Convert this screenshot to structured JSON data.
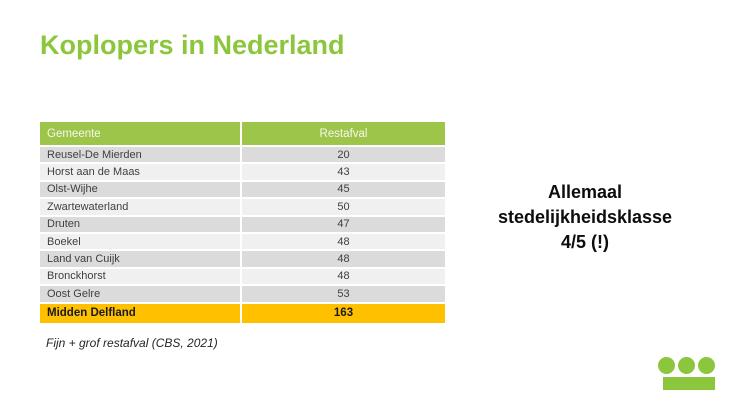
{
  "slide": {
    "title": "Koplopers in Nederland",
    "caption": "Fijn + grof restafval (CBS, 2021)",
    "annotation_lines": [
      "Allemaal",
      "stedelijkheidsklasse",
      "4/5 (!)"
    ]
  },
  "table": {
    "columns": [
      "Gemeente",
      "Restafval"
    ],
    "rows": [
      [
        "Reusel-De Mierden",
        "20"
      ],
      [
        "Horst aan de Maas",
        "43"
      ],
      [
        "Olst-Wijhe",
        "45"
      ],
      [
        "Zwartewaterland",
        "50"
      ],
      [
        "Druten",
        "47"
      ],
      [
        "Boekel",
        "48"
      ],
      [
        "Land van Cuijk",
        "48"
      ],
      [
        "Bronckhorst",
        "48"
      ],
      [
        "Oost Gelre",
        "53"
      ]
    ],
    "highlight_row": [
      "Midden Delfland",
      "163"
    ]
  },
  "chart_data": {
    "type": "table",
    "title": "Koplopers in Nederland",
    "columns": [
      "Gemeente",
      "Restafval"
    ],
    "rows": [
      {
        "Gemeente": "Reusel-De Mierden",
        "Restafval": 20
      },
      {
        "Gemeente": "Horst aan de Maas",
        "Restafval": 43
      },
      {
        "Gemeente": "Olst-Wijhe",
        "Restafval": 45
      },
      {
        "Gemeente": "Zwartewaterland",
        "Restafval": 50
      },
      {
        "Gemeente": "Druten",
        "Restafval": 47
      },
      {
        "Gemeente": "Boekel",
        "Restafval": 48
      },
      {
        "Gemeente": "Land van Cuijk",
        "Restafval": 48
      },
      {
        "Gemeente": "Bronckhorst",
        "Restafval": 48
      },
      {
        "Gemeente": "Oost Gelre",
        "Restafval": 53
      },
      {
        "Gemeente": "Midden Delfland",
        "Restafval": 163
      }
    ],
    "highlighted_row": "Midden Delfland",
    "source": "Fijn + grof restafval (CBS, 2021)",
    "annotation": "Allemaal stedelijkheidsklasse 4/5 (!)"
  },
  "colors": {
    "title_green": "#8CC63C",
    "header_green": "#9DC54A",
    "row_dark": "#DBDBDB",
    "row_light": "#F0F0F0",
    "highlight_orange": "#FFC000",
    "logo_green": "#8CC63C"
  },
  "logo": {
    "description": "three-dots-over-bar"
  }
}
